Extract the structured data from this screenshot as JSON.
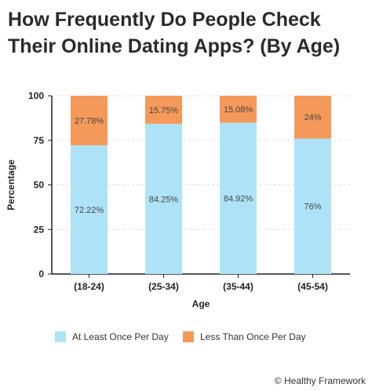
{
  "title": "How Frequently Do People Check Their Online Dating Apps? (By Age)",
  "credit": "© Healthy Framework",
  "colors": {
    "series_1": "#aee3f7",
    "series_2": "#f5995a",
    "grid": "#dddddd",
    "axis": "#222222"
  },
  "chart_data": {
    "type": "bar",
    "stacked": true,
    "title": "How Frequently Do People Check Their Online Dating Apps? (By Age)",
    "xlabel": "Age",
    "ylabel": "Percentage",
    "ylim": [
      0,
      100
    ],
    "yticks": [
      0,
      25,
      50,
      75,
      100
    ],
    "grid": "horizontal dashed",
    "legend_position": "bottom",
    "categories": [
      "(18-24)",
      "(25-34)",
      "(35-44)",
      "(45-54)"
    ],
    "series": [
      {
        "name": "At Least Once Per Day",
        "values": [
          72.22,
          84.25,
          84.92,
          76
        ],
        "labels": [
          "72.22%",
          "84.25%",
          "84.92%",
          "76%"
        ]
      },
      {
        "name": "Less Than Once Per Day",
        "values": [
          27.78,
          15.75,
          15.08,
          24
        ],
        "labels": [
          "27.78%",
          "15.75%",
          "15.08%",
          "24%"
        ]
      }
    ]
  }
}
